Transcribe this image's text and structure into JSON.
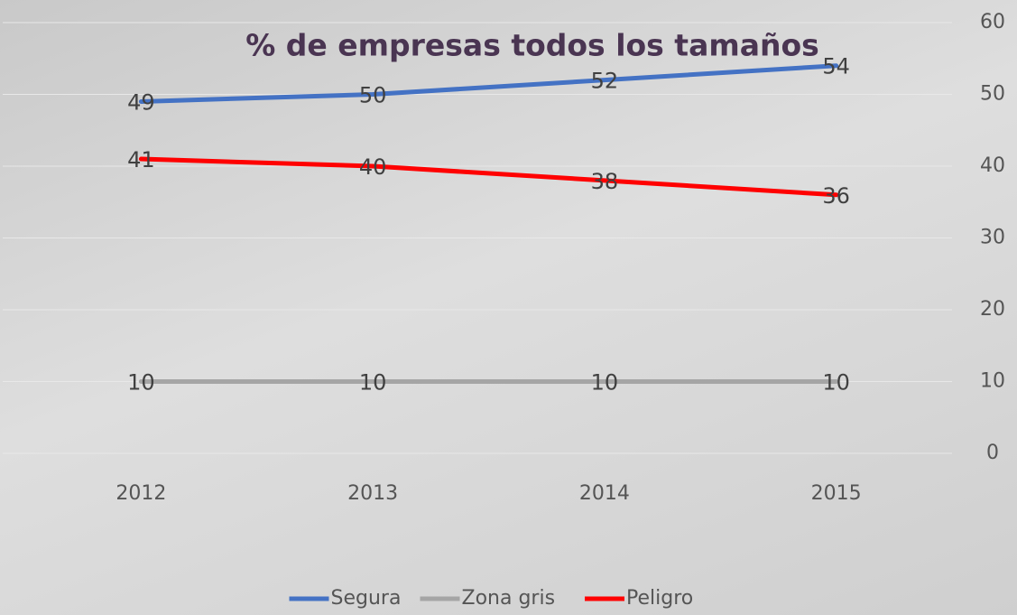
{
  "chart_data": {
    "type": "line",
    "title": "% de empresas todos los tamaños",
    "categories": [
      "2012",
      "2013",
      "2014",
      "2015"
    ],
    "series": [
      {
        "name": "Segura",
        "color": "#4472c4",
        "values": [
          49,
          50,
          52,
          54
        ]
      },
      {
        "name": "Zona gris",
        "color": "#a5a5a5",
        "values": [
          10,
          10,
          10,
          10
        ]
      },
      {
        "name": "Peligro",
        "color": "#ff0000",
        "values": [
          41,
          40,
          38,
          36
        ]
      }
    ],
    "ylim": [
      0,
      60
    ],
    "yticks": [
      0,
      10,
      20,
      30,
      40,
      50,
      60
    ],
    "y_axis_side": "right",
    "grid": true,
    "legend": "bottom",
    "data_labels": true
  }
}
